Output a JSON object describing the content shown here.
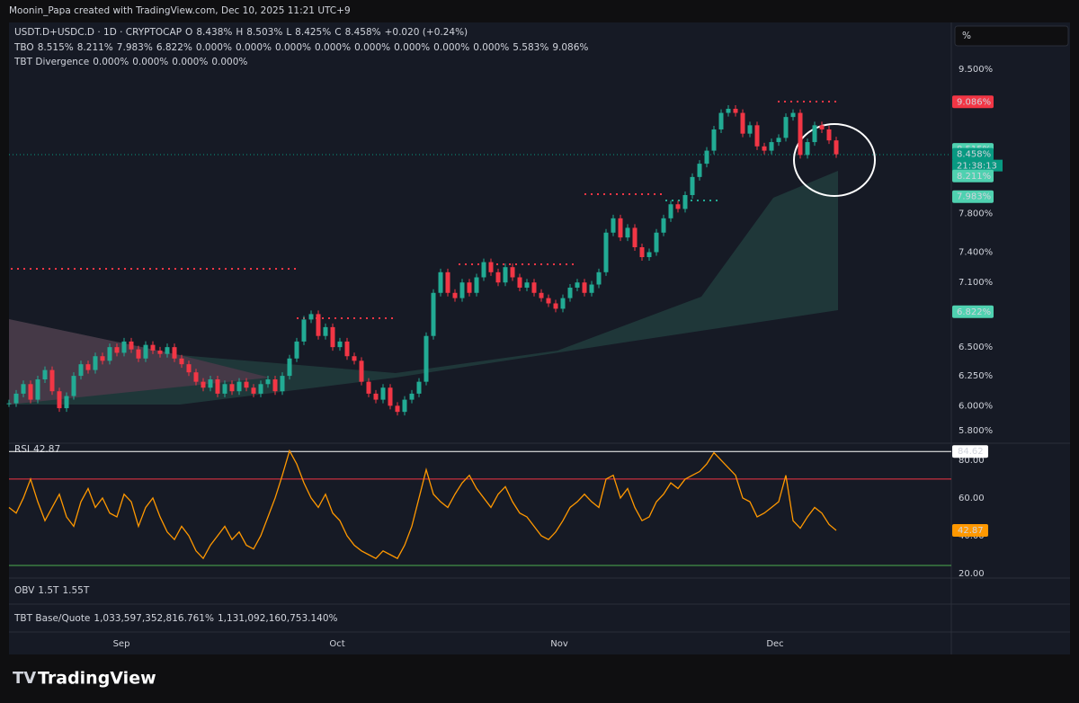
{
  "header": {
    "credit": "Moonin_Papa created with TradingView.com, Dec 10, 2025 11:21 UTC+9",
    "scale_button": "%"
  },
  "legend": {
    "symbol": "USDT.D+USDC.D · 1D · CRYPTOCAP",
    "ohlc": [
      {
        "k": "O",
        "v": "8.438%"
      },
      {
        "k": "H",
        "v": "8.503%"
      },
      {
        "k": "L",
        "v": "8.425%"
      },
      {
        "k": "C",
        "v": "8.458%"
      }
    ],
    "change": "+0.020 (+0.24%)",
    "tbo": {
      "label": "TBO",
      "values": [
        "8.515%",
        "8.211%",
        "7.983%",
        "6.822%",
        "0.000%",
        "0.000%",
        "0.000%",
        "0.000%",
        "0.000%",
        "0.000%",
        "0.000%",
        "0.000%",
        "5.583%",
        "9.086%"
      ],
      "colors": [
        "#4fd1b0",
        "#4fd1b0",
        "#4fd1b0",
        "#4fd1b0",
        "#4fd1b0",
        "#ffffff",
        "#ff9800",
        "#4fd1b0",
        "#e040fb",
        "#ffeb3b",
        "#2962ff",
        "#f23645",
        "#4fd1b0",
        "#f23645"
      ]
    },
    "tbt": {
      "label": "TBT Divergence",
      "values": [
        "0.000%",
        "0.000%",
        "0.000%",
        "0.000%"
      ],
      "colors": [
        "#4fd1b0",
        "#ffeb3b",
        "#f23645",
        "#ffeb3b"
      ]
    },
    "rsi": {
      "label": "RSI",
      "value": "42.87"
    },
    "obv": {
      "label": "OBV",
      "values": [
        "1.5T",
        "1.55T"
      ]
    },
    "base_quote": {
      "label": "TBT Base/Quote",
      "values": [
        "1,033,597,352,816.761%",
        "1,131,092,160,753.140%"
      ]
    }
  },
  "x_labels": [
    "Sep",
    "Oct",
    "Nov",
    "Dec"
  ],
  "footer": {
    "brand": "TradingView"
  },
  "chart_data": [
    {
      "type": "candlestick",
      "log_scale": true,
      "ylim": [
        5.722,
        10.126
      ],
      "yticks": [
        {
          "value": 9.5,
          "label": "9.500%"
        },
        {
          "value": 7.8,
          "label": "7.800%"
        },
        {
          "value": 7.4,
          "label": "7.400%"
        },
        {
          "value": 7.1,
          "label": "7.100%"
        },
        {
          "value": 6.5,
          "label": "6.500%"
        },
        {
          "value": 6.25,
          "label": "6.250%"
        },
        {
          "value": 6.0,
          "label": "6.000%"
        },
        {
          "value": 5.8,
          "label": "5.800%"
        }
      ],
      "up_color": "#22ab94",
      "down_color": "#f23645",
      "close": [
        6.02,
        6.1,
        6.18,
        6.05,
        6.22,
        6.3,
        6.12,
        5.98,
        6.08,
        6.25,
        6.35,
        6.3,
        6.42,
        6.38,
        6.5,
        6.45,
        6.55,
        6.48,
        6.4,
        6.52,
        6.47,
        6.44,
        6.5,
        6.4,
        6.35,
        6.28,
        6.2,
        6.15,
        6.22,
        6.1,
        6.18,
        6.12,
        6.2,
        6.15,
        6.1,
        6.18,
        6.22,
        6.12,
        6.25,
        6.4,
        6.55,
        6.75,
        6.8,
        6.6,
        6.68,
        6.5,
        6.55,
        6.42,
        6.38,
        6.2,
        6.1,
        6.05,
        6.15,
        6.0,
        5.95,
        6.05,
        6.1,
        6.2,
        6.6,
        7.0,
        7.2,
        7.0,
        6.95,
        7.1,
        7.0,
        7.15,
        7.3,
        7.2,
        7.1,
        7.25,
        7.15,
        7.05,
        7.1,
        7.0,
        6.95,
        6.9,
        6.85,
        6.95,
        7.05,
        7.1,
        7.0,
        7.08,
        7.2,
        7.6,
        7.75,
        7.55,
        7.65,
        7.45,
        7.35,
        7.4,
        7.6,
        7.75,
        7.9,
        7.85,
        8.0,
        8.2,
        8.35,
        8.5,
        8.75,
        8.95,
        9.0,
        8.95,
        8.7,
        8.8,
        8.55,
        8.5,
        8.6,
        8.65,
        8.9,
        8.95,
        8.45,
        8.6,
        8.8,
        8.75,
        8.62,
        8.458
      ],
      "price_labels": [
        {
          "value": 9.086,
          "label": "9.086%",
          "color": "#f23645"
        },
        {
          "value": 8.515,
          "label": "8.515%",
          "color": "#4fd1b0"
        },
        {
          "value": 8.458,
          "label": "8.458%",
          "color": "#089981"
        },
        {
          "value": 8.211,
          "label": "8.211%",
          "color": "#4fd1b0"
        },
        {
          "value": 7.983,
          "label": "7.983%",
          "color": "#4fd1b0"
        },
        {
          "value": 6.822,
          "label": "6.822%",
          "color": "#4fd1b0"
        }
      ],
      "countdown": "21:38:13"
    },
    {
      "type": "line",
      "name": "RSI",
      "color": "#ff9800",
      "ylim": [
        19.05,
        87.1
      ],
      "yticks": [
        {
          "value": 80,
          "label": "80.00"
        },
        {
          "value": 60,
          "label": "60.00"
        },
        {
          "value": 40,
          "label": "40.00"
        },
        {
          "value": 20,
          "label": "20.00"
        }
      ],
      "levels": [
        {
          "value": 84.62,
          "color": "#ffffff"
        },
        {
          "value": 70,
          "color": "#f23645"
        },
        {
          "value": 24.3,
          "color": "#4caf50"
        }
      ],
      "values": [
        55,
        52,
        60,
        70,
        58,
        48,
        55,
        62,
        50,
        45,
        58,
        65,
        55,
        60,
        52,
        50,
        62,
        58,
        45,
        55,
        60,
        50,
        42,
        38,
        45,
        40,
        32,
        28,
        35,
        40,
        45,
        38,
        42,
        35,
        33,
        40,
        50,
        60,
        72,
        85,
        78,
        68,
        60,
        55,
        62,
        52,
        48,
        40,
        35,
        32,
        30,
        28,
        32,
        30,
        28,
        35,
        45,
        60,
        75,
        62,
        58,
        55,
        62,
        68,
        72,
        65,
        60,
        55,
        62,
        66,
        58,
        52,
        50,
        45,
        40,
        38,
        42,
        48,
        55,
        58,
        62,
        58,
        55,
        70,
        72,
        60,
        65,
        55,
        48,
        50,
        58,
        62,
        68,
        65,
        70,
        72,
        74,
        78,
        84,
        80,
        76,
        72,
        60,
        58,
        50,
        52,
        55,
        58,
        72,
        48,
        44,
        50,
        55,
        52,
        46,
        42.87
      ],
      "value_labels": [
        {
          "value": 84.62,
          "label": "84.62",
          "color": "#ffffff"
        },
        {
          "value": 42.87,
          "label": "42.87",
          "color": "#ff9800"
        }
      ]
    }
  ]
}
